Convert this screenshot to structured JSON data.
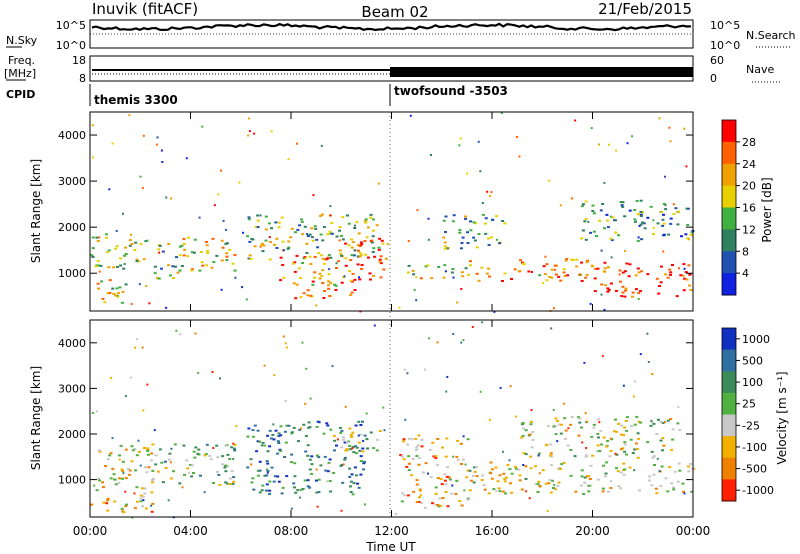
{
  "header": {
    "site": "Inuvik (fitACF)",
    "beam": "Beam 02",
    "date": "21/Feb/2015"
  },
  "panels": {
    "nsky": {
      "label": "N.Sky",
      "ticks_left": [
        "10^5",
        "10^0"
      ],
      "ticks_right": [
        "10^5",
        "10^0"
      ],
      "right_label": "N.Search"
    },
    "freq": {
      "label": "Freq.",
      "unit": "[MHz]",
      "ticks_left": [
        "18",
        "8"
      ],
      "ticks_right": [
        "60",
        "0"
      ],
      "right_label": "Nave"
    },
    "cpid": {
      "label": "CPID",
      "modes": [
        {
          "name": "themis 3300",
          "start_hour": 0
        },
        {
          "name": "twofsound -3503",
          "start_hour": 12
        }
      ]
    }
  },
  "colors": {
    "power": [
      "#1020e0",
      "#2050b0",
      "#2f8060",
      "#40b040",
      "#e8d000",
      "#f0a000",
      "#ff6000",
      "#ff0000"
    ],
    "velocity": [
      "#1030c0",
      "#3070a0",
      "#3a8a5a",
      "#50b040",
      "#c8c8c8",
      "#f0b000",
      "#f08000",
      "#ff2000"
    ]
  },
  "chart_data": [
    {
      "type": "heatmap",
      "title": "Power",
      "xlabel": "",
      "ylabel": "Slant Range [km]",
      "x_range_hours": [
        0,
        24
      ],
      "ylim_km": [
        180,
        4500
      ],
      "x_ticks": [
        "00:00",
        "04:00",
        "08:00",
        "12:00",
        "16:00",
        "20:00",
        "00:00"
      ],
      "y_ticks": [
        1000,
        2000,
        3000,
        4000
      ],
      "colorbar": {
        "label": "Power [dB]",
        "ticks": [
          "4",
          "8",
          "12",
          "16",
          "20",
          "24",
          "28"
        ],
        "range": [
          0,
          30
        ]
      },
      "regions": [
        {
          "t": [
            0.0,
            2.2
          ],
          "r": [
            1100,
            1900
          ],
          "level": 14
        },
        {
          "t": [
            0.2,
            1.5
          ],
          "r": [
            250,
            900
          ],
          "level": 18
        },
        {
          "t": [
            2.5,
            3.8
          ],
          "r": [
            900,
            1700
          ],
          "level": 14
        },
        {
          "t": [
            3.5,
            5.8
          ],
          "r": [
            1050,
            1800
          ],
          "level": 18
        },
        {
          "t": [
            6.2,
            11.8
          ],
          "r": [
            1300,
            2300
          ],
          "level": 14
        },
        {
          "t": [
            7.5,
            10.5
          ],
          "r": [
            450,
            1400
          ],
          "level": 22
        },
        {
          "t": [
            10.0,
            11.7
          ],
          "r": [
            850,
            1800
          ],
          "level": 26
        },
        {
          "t": [
            12.5,
            15.0
          ],
          "r": [
            900,
            1200
          ],
          "level": 16
        },
        {
          "t": [
            14.0,
            16.5
          ],
          "r": [
            1500,
            2300
          ],
          "level": 12
        },
        {
          "t": [
            15.0,
            20.0
          ],
          "r": [
            850,
            1350
          ],
          "level": 22
        },
        {
          "t": [
            20.0,
            24.0
          ],
          "r": [
            500,
            1250
          ],
          "level": 28
        },
        {
          "t": [
            19.5,
            24.0
          ],
          "r": [
            1700,
            2600
          ],
          "level": 10
        }
      ]
    },
    {
      "type": "heatmap",
      "title": "Velocity",
      "xlabel": "Time UT",
      "ylabel": "Slant Range [km]",
      "x_range_hours": [
        0,
        24
      ],
      "ylim_km": [
        180,
        4500
      ],
      "x_ticks": [
        "00:00",
        "04:00",
        "08:00",
        "12:00",
        "16:00",
        "20:00",
        "00:00"
      ],
      "y_ticks": [
        1000,
        2000,
        3000,
        4000
      ],
      "colorbar": {
        "label": "Velocity [m s⁻¹]",
        "ticks": [
          "1000",
          "500",
          "100",
          "25",
          "-25",
          "-100",
          "-500",
          "-1000"
        ],
        "range": [
          -1000,
          1000
        ]
      },
      "regions": [
        {
          "t": [
            0.0,
            2.5
          ],
          "r": [
            300,
            1800
          ],
          "level": -300
        },
        {
          "t": [
            2.5,
            5.8
          ],
          "r": [
            900,
            1800
          ],
          "level": 80
        },
        {
          "t": [
            6.2,
            11.0
          ],
          "r": [
            700,
            2300
          ],
          "level": 500
        },
        {
          "t": [
            9.5,
            11.5
          ],
          "r": [
            1600,
            2200
          ],
          "level": 0
        },
        {
          "t": [
            12.3,
            15.0
          ],
          "r": [
            400,
            2000
          ],
          "level": -400
        },
        {
          "t": [
            15.0,
            24.0
          ],
          "r": [
            700,
            1400
          ],
          "level": -200
        },
        {
          "t": [
            17.0,
            23.5
          ],
          "r": [
            1500,
            2400
          ],
          "level": -50
        }
      ]
    }
  ]
}
